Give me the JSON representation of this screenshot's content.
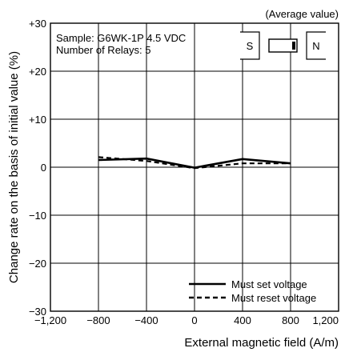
{
  "chart_data": {
    "type": "line",
    "title": "",
    "note": "(Average value)",
    "sample_info": [
      "Sample: G6WK-1P 4.5 VDC",
      "Number of Relays: 5"
    ],
    "magnet_labels": [
      "S",
      "N"
    ],
    "xlabel": "External magnetic field (A/m)",
    "ylabel": "Change rate on the basis of initial value (%)",
    "xlim": [
      -1200,
      1200
    ],
    "ylim": [
      -30,
      30
    ],
    "x_ticks": [
      -1200,
      -800,
      -400,
      0,
      400,
      800,
      1200
    ],
    "x_tick_labels": [
      "−1,200",
      "−800",
      "−400",
      "0",
      "400",
      "800",
      "1,200"
    ],
    "y_ticks": [
      30,
      20,
      10,
      0,
      -10,
      -20,
      -30
    ],
    "y_tick_labels": [
      "+30",
      "+20",
      "+10",
      "0",
      "−10",
      "−20",
      "−30"
    ],
    "grid": true,
    "legend_position": "bottom-right",
    "series": [
      {
        "name": "Must set voltage",
        "style": "solid",
        "color": "#000000",
        "x": [
          -800,
          -400,
          0,
          400,
          800
        ],
        "y": [
          1.5,
          1.8,
          -0.1,
          1.7,
          0.8
        ]
      },
      {
        "name": "Must reset voltage",
        "style": "dashed",
        "color": "#000000",
        "x": [
          -800,
          -400,
          0,
          400,
          800
        ],
        "y": [
          2.1,
          1.3,
          -0.2,
          0.8,
          0.8
        ]
      }
    ]
  }
}
